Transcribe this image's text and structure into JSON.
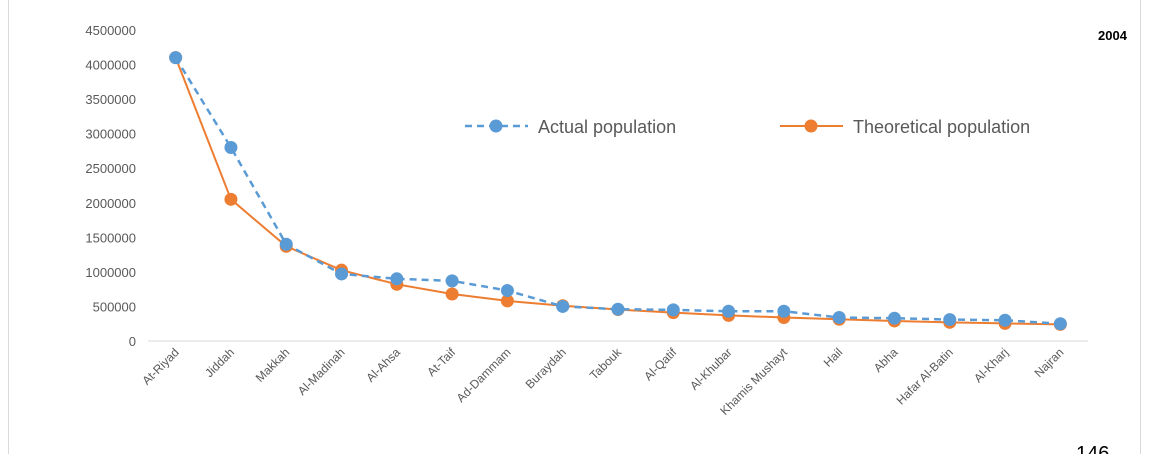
{
  "chart_data": {
    "type": "line",
    "year_label": "2004",
    "categories": [
      "At-Riyad",
      "Jiddah",
      "Makkah",
      "Al-Madinah",
      "Al-Ahsa",
      "At-Taif",
      "Ad-Dammam",
      "Buraydah",
      "Tabouk",
      "Al-Qatif",
      "Al-Khubar",
      "Khamis Mushayt",
      "Hail",
      "Abha",
      "Hafar Al-Batin",
      "Al-Kharj",
      "Najran"
    ],
    "series": [
      {
        "name": "Actual population",
        "color": "#5b9bd5",
        "dashed": true,
        "values": [
          4100000,
          2800000,
          1400000,
          970000,
          900000,
          870000,
          730000,
          500000,
          460000,
          450000,
          430000,
          430000,
          340000,
          330000,
          310000,
          300000,
          250000
        ]
      },
      {
        "name": "Theoretical population",
        "color": "#ed7d31",
        "dashed": false,
        "values": [
          4100000,
          2050000,
          1370000,
          1025000,
          820000,
          680000,
          580000,
          510000,
          455000,
          410000,
          370000,
          340000,
          315000,
          290000,
          270000,
          255000,
          240000
        ]
      }
    ],
    "yticks": [
      "0",
      "500000",
      "1000000",
      "1500000",
      "2000000",
      "2500000",
      "3000000",
      "3500000",
      "4000000",
      "4500000"
    ],
    "ylim": [
      0,
      4500000
    ],
    "legend_position": "top-right",
    "grid": false
  },
  "page_number": "146"
}
